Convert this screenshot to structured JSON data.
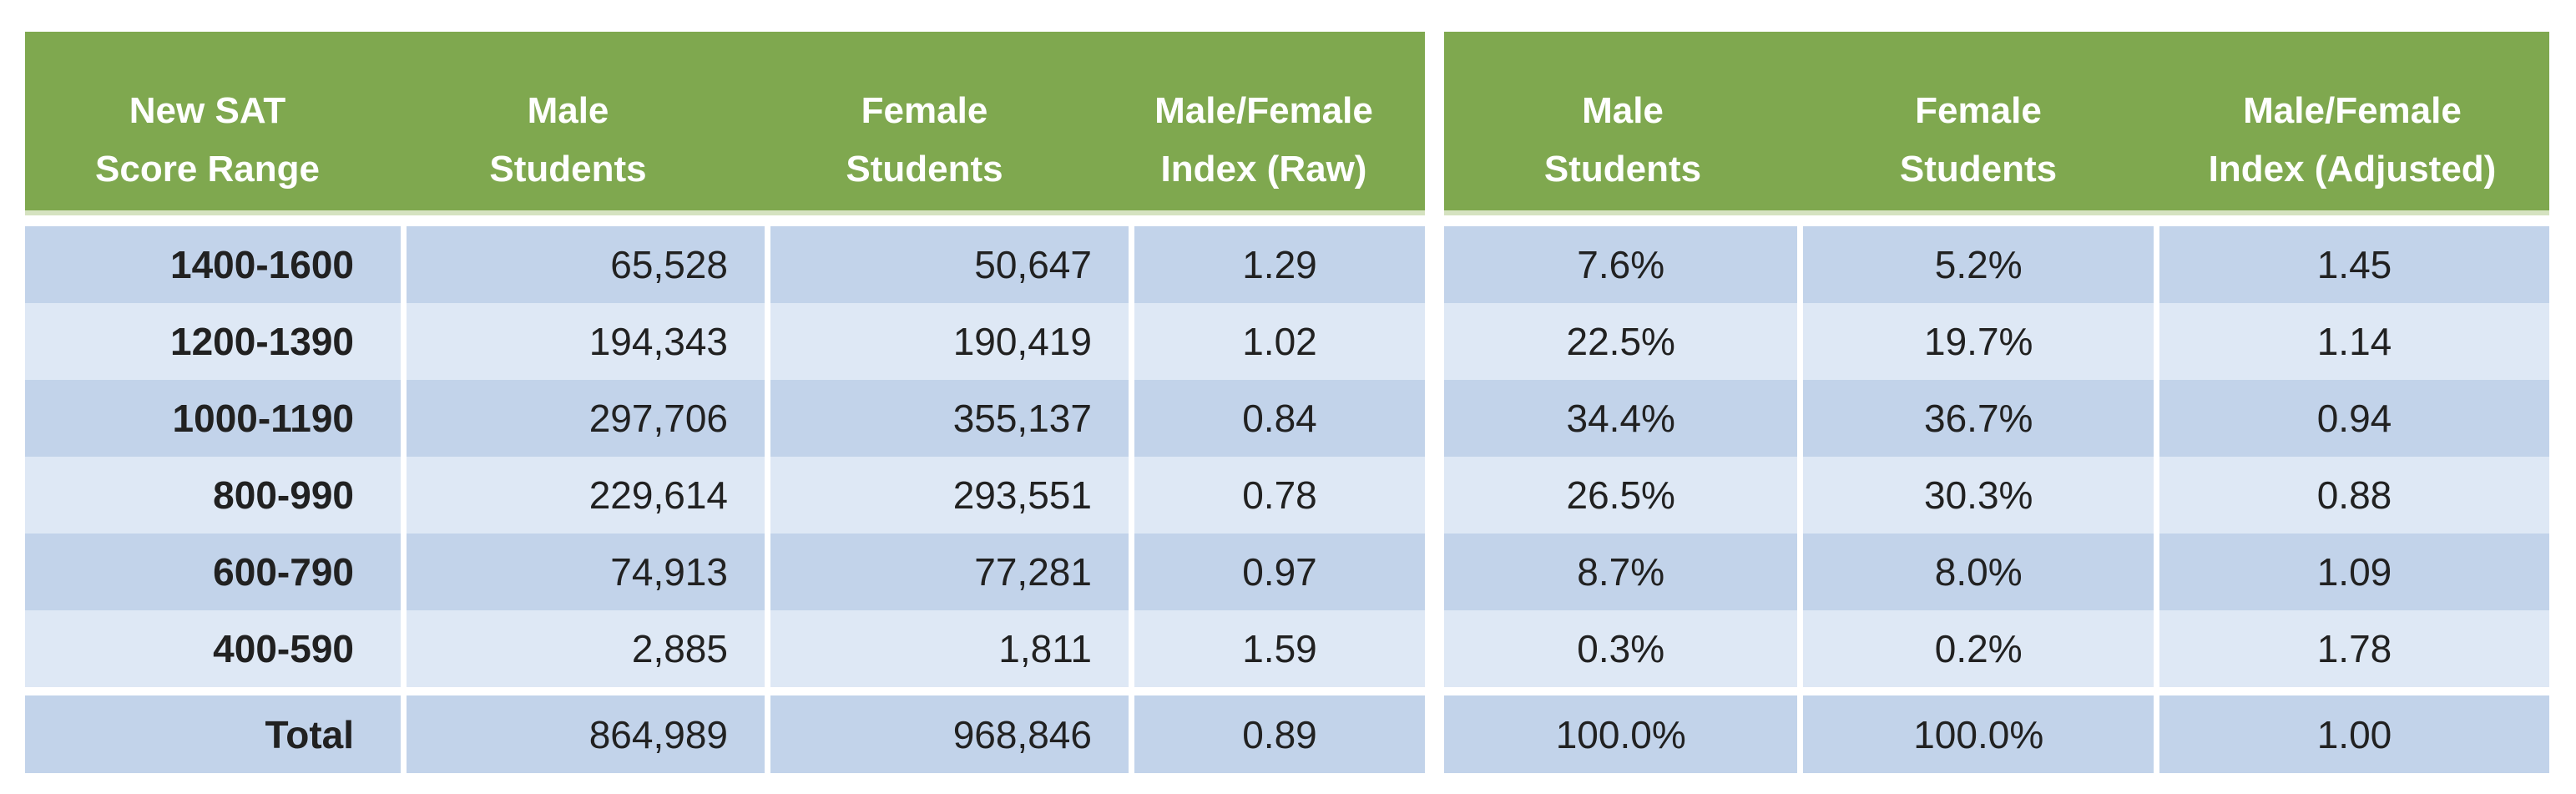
{
  "colors": {
    "header_bg": "#7FA84F",
    "header_text": "#FFFFFF",
    "row_dark": "#C2D3EA",
    "row_light": "#DEE8F5",
    "cell_text": "#212121",
    "header_underline": "#D5E2C0",
    "background": "#FFFFFF"
  },
  "left_table": {
    "header": [
      [
        "New SAT",
        "Score Range"
      ],
      [
        "Male",
        "Students"
      ],
      [
        "Female",
        "Students"
      ],
      [
        "Male/Female",
        "Index (Raw)"
      ]
    ],
    "rows": [
      [
        "1400-1600",
        "65,528",
        "50,647",
        "1.29"
      ],
      [
        "1200-1390",
        "194,343",
        "190,419",
        "1.02"
      ],
      [
        "1000-1190",
        "297,706",
        "355,137",
        "0.84"
      ],
      [
        "800-990",
        "229,614",
        "293,551",
        "0.78"
      ],
      [
        "600-790",
        "74,913",
        "77,281",
        "0.97"
      ],
      [
        "400-590",
        "2,885",
        "1,811",
        "1.59"
      ],
      [
        "Total",
        "864,989",
        "968,846",
        "0.89"
      ]
    ]
  },
  "right_table": {
    "header": [
      [
        "Male",
        "Students"
      ],
      [
        "Female",
        "Students"
      ],
      [
        "Male/Female",
        "Index (Adjusted)"
      ]
    ],
    "rows": [
      [
        "7.6%",
        "5.2%",
        "1.45"
      ],
      [
        "22.5%",
        "19.7%",
        "1.14"
      ],
      [
        "34.4%",
        "36.7%",
        "0.94"
      ],
      [
        "26.5%",
        "30.3%",
        "0.88"
      ],
      [
        "8.7%",
        "8.0%",
        "1.09"
      ],
      [
        "0.3%",
        "0.2%",
        "1.78"
      ],
      [
        "100.0%",
        "100.0%",
        "1.00"
      ]
    ]
  },
  "chart_data": {
    "type": "table",
    "tables": [
      {
        "columns": [
          "New SAT Score Range",
          "Male Students",
          "Female Students",
          "Male/Female Index (Raw)"
        ],
        "rows": [
          [
            "1400-1600",
            65528,
            50647,
            1.29
          ],
          [
            "1200-1390",
            194343,
            190419,
            1.02
          ],
          [
            "1000-1190",
            297706,
            355137,
            0.84
          ],
          [
            "800-990",
            229614,
            293551,
            0.78
          ],
          [
            "600-790",
            74913,
            77281,
            0.97
          ],
          [
            "400-590",
            2885,
            1811,
            1.59
          ],
          [
            "Total",
            864989,
            968846,
            0.89
          ]
        ]
      },
      {
        "columns": [
          "Male Students",
          "Female Students",
          "Male/Female Index (Adjusted)"
        ],
        "rows": [
          [
            "7.6%",
            "5.2%",
            1.45
          ],
          [
            "22.5%",
            "19.7%",
            1.14
          ],
          [
            "34.4%",
            "36.7%",
            0.94
          ],
          [
            "26.5%",
            "30.3%",
            0.88
          ],
          [
            "8.7%",
            "8.0%",
            1.09
          ],
          [
            "0.3%",
            "0.2%",
            1.78
          ],
          [
            "100.0%",
            "100.0%",
            1.0
          ]
        ]
      }
    ]
  }
}
